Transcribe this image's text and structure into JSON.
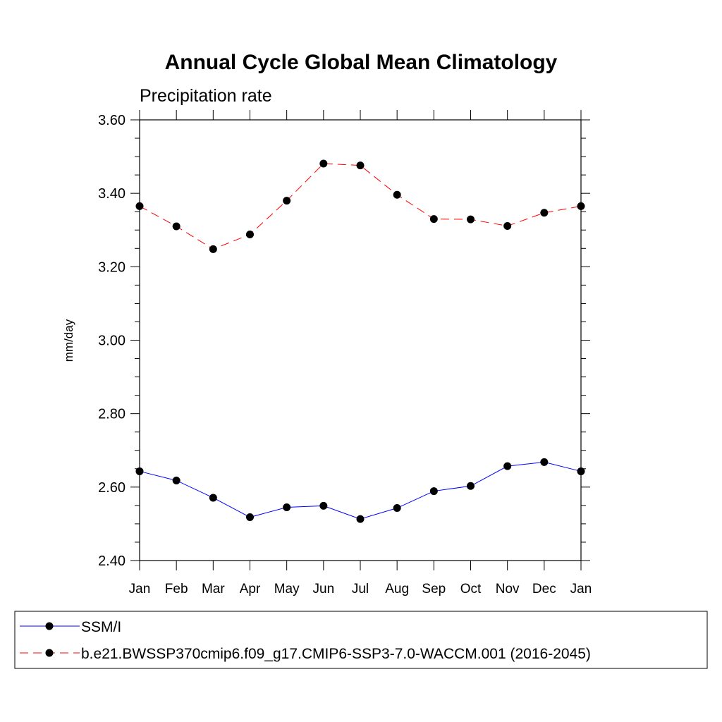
{
  "chart_data": {
    "type": "line",
    "title": "Annual Cycle Global Mean Climatology",
    "subtitle": "Precipitation rate",
    "xlabel": "",
    "ylabel": "mm/day",
    "categories": [
      "Jan",
      "Feb",
      "Mar",
      "Apr",
      "May",
      "Jun",
      "Jul",
      "Aug",
      "Sep",
      "Oct",
      "Nov",
      "Dec",
      "Jan"
    ],
    "ylim": [
      2.4,
      3.6
    ],
    "yticks": [
      "2.40",
      "2.60",
      "2.80",
      "3.00",
      "3.20",
      "3.40",
      "3.60"
    ],
    "series": [
      {
        "name": "SSM/I",
        "color": "#0000ff",
        "dash": "solid",
        "marker": "filled-circle",
        "values": [
          2.643,
          2.618,
          2.571,
          2.518,
          2.545,
          2.549,
          2.513,
          2.543,
          2.589,
          2.603,
          2.657,
          2.668,
          2.643
        ]
      },
      {
        "name": "b.e21.BWSSP370cmip6.f09_g17.CMIP6-SSP3-7.0-WACCM.001 (2016-2045)",
        "color": "#ff0000",
        "dash": "dashed",
        "marker": "filled-circle",
        "values": [
          3.365,
          3.31,
          3.248,
          3.288,
          3.38,
          3.481,
          3.476,
          3.396,
          3.33,
          3.329,
          3.311,
          3.347,
          3.365
        ]
      }
    ],
    "grid": false,
    "legend_position": "bottom"
  }
}
